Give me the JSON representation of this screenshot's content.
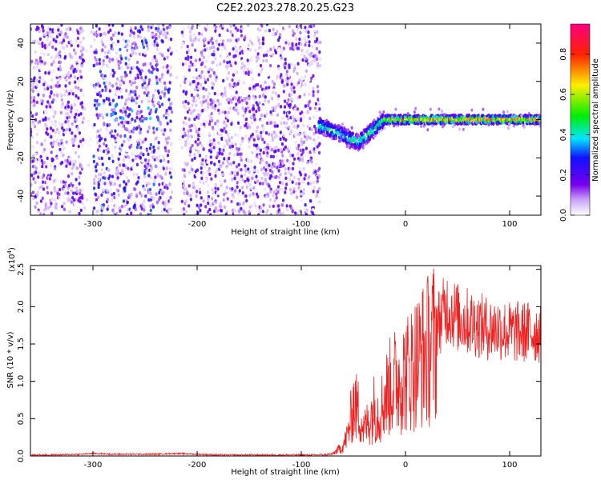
{
  "title": "C2E2.2023.278.20.25.G23",
  "chart_data": [
    {
      "type": "heatmap",
      "xlabel": "Height of straight line (km)",
      "ylabel": "Frequency (Hz)",
      "xlim": [
        -360,
        130
      ],
      "ylim": [
        -50,
        50
      ],
      "xticks": [
        -300,
        -200,
        -100,
        0,
        100
      ],
      "xtick_labels": [
        "-300",
        "-200",
        "-100",
        "0",
        "100"
      ],
      "yticks": [
        -40,
        -20,
        0,
        20,
        40
      ],
      "ytick_labels": [
        "-40",
        "-20",
        "0",
        "20",
        "40"
      ],
      "grid": false,
      "colorbar": {
        "label": "Normalized spectral amplitude",
        "range": [
          0.0,
          0.95
        ],
        "ticks": [
          0.0,
          0.2,
          0.4,
          0.6,
          0.8
        ],
        "tick_labels": [
          "0.0",
          "0.2",
          "0.4",
          "0.6",
          "0.8"
        ],
        "colormap": [
          "#ffffff",
          "#7700ee",
          "#1010ff",
          "#00e5ff",
          "#00ee00",
          "#ffee00",
          "#ff2200",
          "#ff0080"
        ]
      },
      "regions": [
        {
          "x_range": [
            -360,
            -310
          ],
          "pattern": "scattered noise",
          "max_amplitude": 0.25
        },
        {
          "x_range": [
            -310,
            -300
          ],
          "pattern": "sparse gap",
          "max_amplitude": 0.05
        },
        {
          "x_range": [
            -300,
            -225
          ],
          "pattern": "scattered noise, band near 5 Hz",
          "max_amplitude": 0.35
        },
        {
          "x_range": [
            -225,
            -215
          ],
          "pattern": "sparse gap",
          "max_amplitude": 0.05
        },
        {
          "x_range": [
            -215,
            -83
          ],
          "pattern": "scattered noise",
          "max_amplitude": 0.25
        },
        {
          "x_range": [
            -83,
            -20
          ],
          "pattern": "signal rises from about -12 Hz to 0 Hz",
          "max_amplitude": 0.6
        },
        {
          "x_range": [
            -20,
            130
          ],
          "pattern": "narrow signal band near 0 Hz",
          "max_amplitude": 0.95
        }
      ]
    },
    {
      "type": "line",
      "xlabel": "Height of straight line (km)",
      "ylabel": "SNR (10 * v/v)",
      "y_multiplier_label": "(x10",
      "y_multiplier_exp": "4",
      "y_multiplier_close": ")",
      "xlim": [
        -360,
        130
      ],
      "ylim": [
        0,
        2.55
      ],
      "xticks": [
        -300,
        -200,
        -100,
        0,
        100
      ],
      "xtick_labels": [
        "-300",
        "-200",
        "-100",
        "0",
        "100"
      ],
      "yticks": [
        0.0,
        0.5,
        1.0,
        1.5,
        2.0,
        2.5
      ],
      "ytick_labels": [
        "0.0",
        "0.5",
        "1.0",
        "1.5",
        "2.0",
        "2.5"
      ],
      "grid": false,
      "color": "#ee2222",
      "series": [
        {
          "x": [
            -360,
            -340,
            -310,
            -300,
            -280,
            -260,
            -240,
            -220,
            -200,
            -180,
            -160,
            -140,
            -120,
            -100,
            -85,
            -70,
            -60,
            -55,
            -50,
            -45,
            -40,
            -35,
            -30,
            -25,
            -20,
            -15,
            -10,
            -5,
            0,
            10,
            20,
            30,
            40,
            50,
            60,
            70,
            80,
            90,
            100,
            110,
            120,
            130
          ],
          "values": [
            0.01,
            0.01,
            0.02,
            0.03,
            0.02,
            0.02,
            0.02,
            0.03,
            0.02,
            0.01,
            0.01,
            0.01,
            0.01,
            0.01,
            0.01,
            0.03,
            0.15,
            0.35,
            0.8,
            0.7,
            0.4,
            0.55,
            0.75,
            0.65,
            0.9,
            1.05,
            1.15,
            1.2,
            1.25,
            1.45,
            1.6,
            1.8,
            2.05,
            1.9,
            1.85,
            1.8,
            1.75,
            1.75,
            1.7,
            1.7,
            1.7,
            1.7
          ]
        }
      ]
    }
  ]
}
